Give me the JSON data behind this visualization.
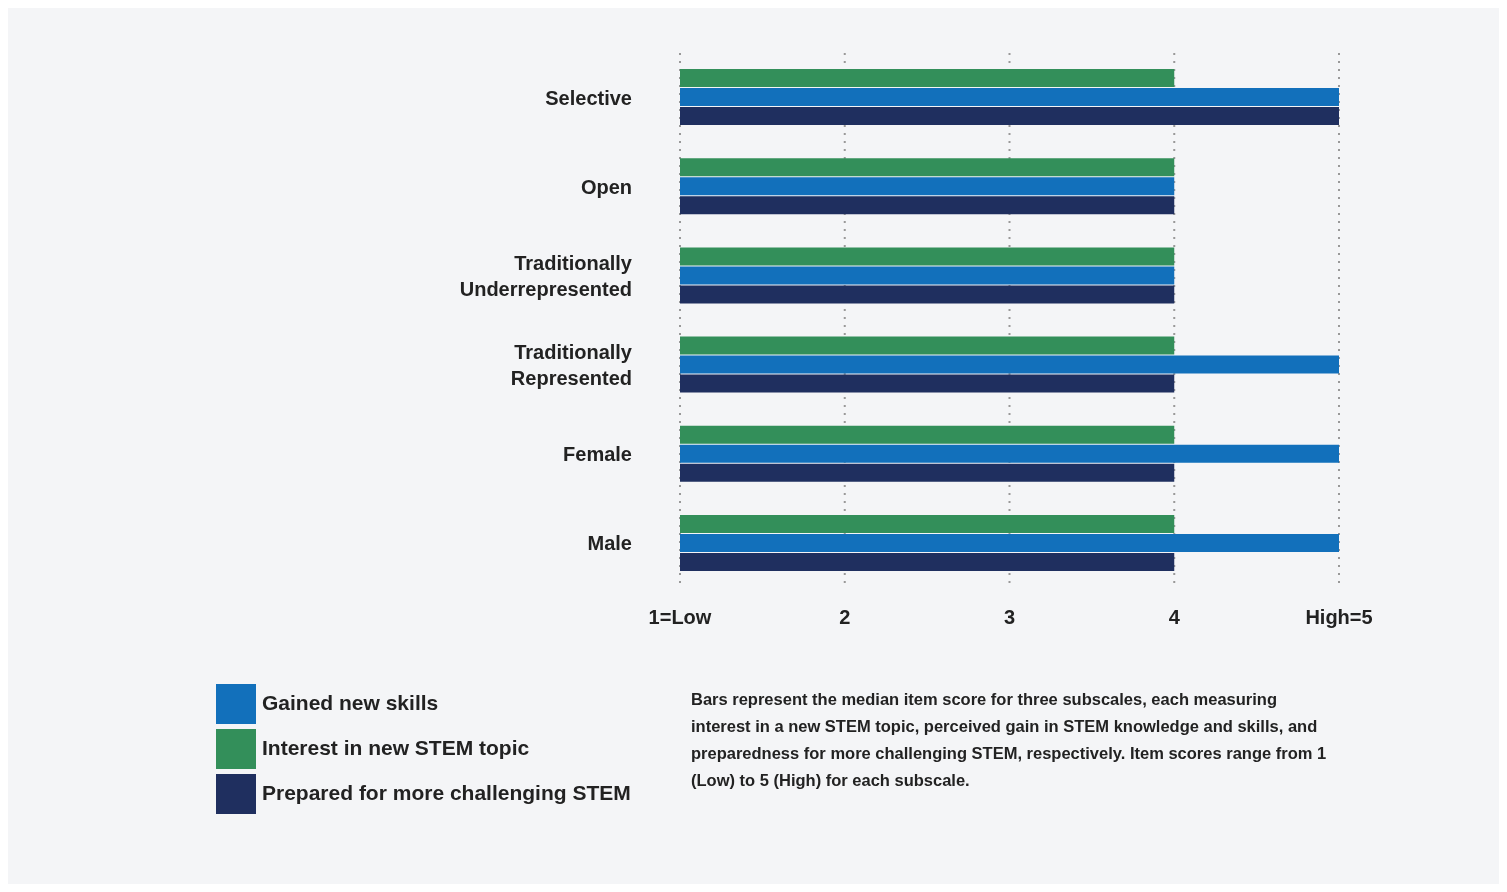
{
  "chart_data": {
    "type": "bar",
    "orientation": "horizontal",
    "categories": [
      "Selective",
      "Open",
      "Traditionally Underrepresented",
      "Traditionally Represented",
      "Female",
      "Male"
    ],
    "series": [
      {
        "name": "Interest in new STEM topic",
        "color": "#338f5a",
        "values": [
          4,
          4,
          4,
          4,
          4,
          4
        ]
      },
      {
        "name": "Gained new skills",
        "color": "#1270bb",
        "values": [
          5,
          4,
          4,
          5,
          5,
          5
        ]
      },
      {
        "name": "Prepared for more challenging STEM",
        "color": "#1f2f5f",
        "values": [
          5,
          4,
          4,
          4,
          4,
          4
        ]
      }
    ],
    "xlim": [
      1,
      5
    ],
    "xticks": [
      {
        "value": 1,
        "label": "1=Low"
      },
      2,
      3,
      4,
      {
        "value": 5,
        "label": "High=5"
      }
    ],
    "grid": "x",
    "legend": "bottom left",
    "annotations": [
      "Bars represent the median item score for three subscales, each measuring interest in a new STEM topic, perceived gain in STEM knowledge and skills, and preparedness for more challenging STEM, respectively. Item scores range from 1 (Low) to 5 (High) for each subscale."
    ]
  }
}
